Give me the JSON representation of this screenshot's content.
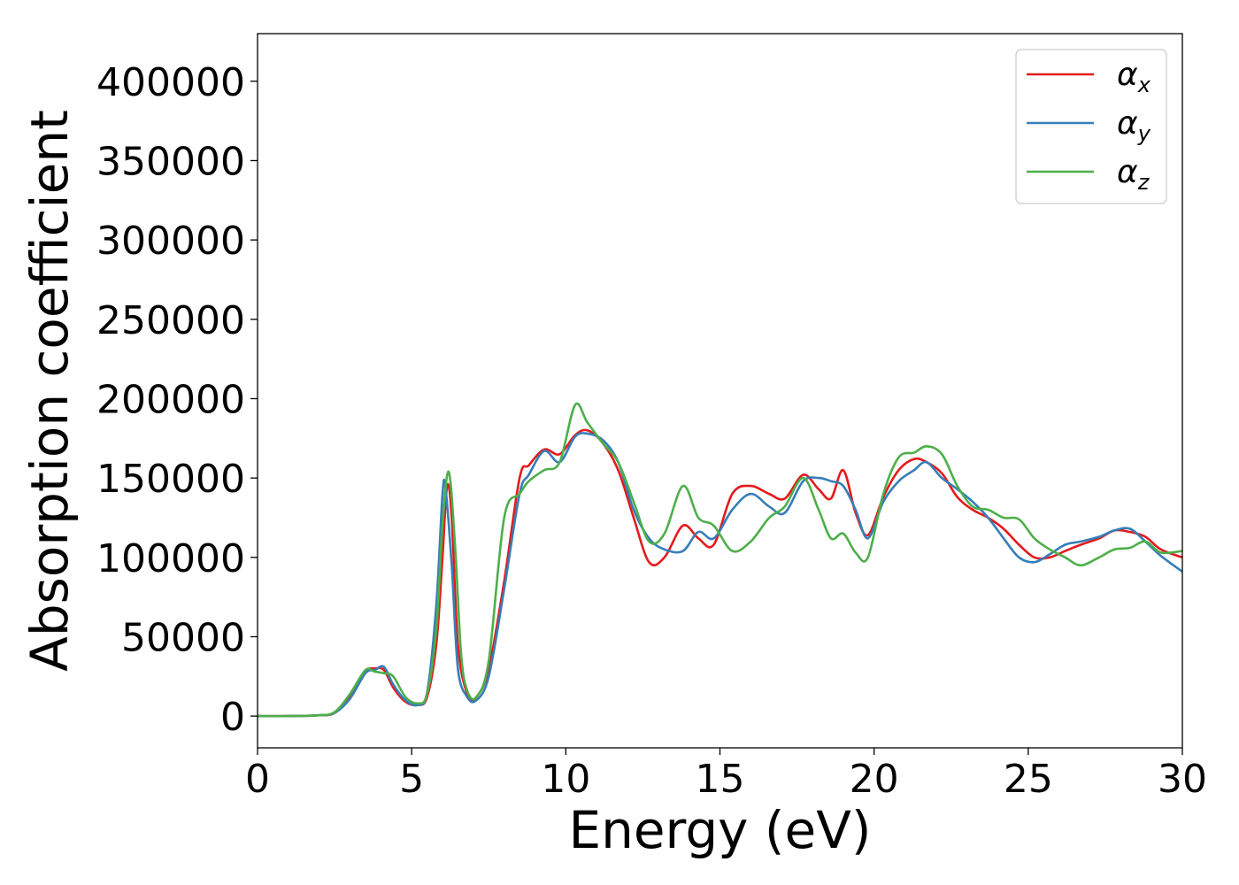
{
  "chart_data": {
    "type": "line",
    "title": "",
    "xlabel": "Energy (eV)",
    "ylabel": "Absorption coefficient",
    "xlim": [
      0,
      30
    ],
    "ylim": [
      -20000,
      430000
    ],
    "xticks": [
      0,
      5,
      10,
      15,
      20,
      25,
      30
    ],
    "yticks": [
      0,
      50000,
      100000,
      150000,
      200000,
      250000,
      300000,
      350000,
      400000
    ],
    "grid": false,
    "legend_position": "top-right",
    "series": [
      {
        "name": "αx",
        "label_main": "α",
        "label_sub": "x",
        "color": "#e41a1c",
        "x": [
          0,
          1,
          2,
          2.5,
          3,
          3.5,
          3.8,
          4.1,
          4.4,
          4.8,
          5.2,
          5.5,
          5.8,
          6.0,
          6.15,
          6.3,
          6.5,
          6.8,
          7.1,
          7.5,
          8.0,
          8.5,
          8.8,
          9.3,
          9.8,
          10.3,
          10.7,
          11.2,
          11.7,
          12.2,
          12.7,
          13.2,
          13.8,
          14.3,
          14.8,
          15.4,
          16.0,
          16.6,
          17.1,
          17.7,
          18.2,
          18.6,
          19.0,
          19.4,
          19.8,
          20.3,
          20.8,
          21.3,
          21.7,
          22.2,
          22.7,
          23.2,
          23.7,
          24.2,
          24.7,
          25.2,
          25.7,
          26.2,
          26.7,
          27.3,
          27.8,
          28.3,
          28.8,
          29.3,
          30.0
        ],
        "y": [
          0,
          0,
          500,
          2000,
          12000,
          28000,
          30000,
          29000,
          18000,
          9000,
          7000,
          12000,
          45000,
          100000,
          145000,
          125000,
          45000,
          14000,
          12000,
          30000,
          85000,
          150000,
          158000,
          168000,
          165000,
          177000,
          180000,
          172000,
          155000,
          125000,
          97000,
          100000,
          120000,
          112000,
          108000,
          140000,
          145000,
          140000,
          137000,
          152000,
          143000,
          137000,
          155000,
          128000,
          114000,
          138000,
          155000,
          162000,
          160000,
          153000,
          138000,
          130000,
          125000,
          118000,
          108000,
          100000,
          100000,
          104000,
          108000,
          112000,
          117000,
          116000,
          113000,
          105000,
          100000
        ]
      },
      {
        "name": "αy",
        "label_main": "α",
        "label_sub": "y",
        "color": "#377eb8",
        "x": [
          0,
          1,
          2,
          2.5,
          3,
          3.5,
          3.8,
          4.1,
          4.4,
          4.8,
          5.2,
          5.5,
          5.8,
          6.0,
          6.1,
          6.3,
          6.5,
          6.8,
          7.1,
          7.5,
          8.0,
          8.5,
          8.8,
          9.3,
          9.8,
          10.3,
          10.7,
          11.2,
          11.7,
          12.2,
          12.7,
          13.2,
          13.8,
          14.3,
          14.8,
          15.4,
          16.0,
          16.6,
          17.1,
          17.7,
          18.2,
          18.6,
          19.0,
          19.4,
          19.8,
          20.3,
          20.8,
          21.3,
          21.7,
          22.2,
          22.7,
          23.2,
          23.7,
          24.2,
          24.7,
          25.2,
          25.7,
          26.2,
          26.7,
          27.3,
          27.8,
          28.3,
          28.8,
          29.3,
          30.0
        ],
        "y": [
          0,
          0,
          500,
          2000,
          11000,
          27000,
          29000,
          31000,
          20000,
          10000,
          7000,
          15000,
          70000,
          140000,
          143000,
          95000,
          30000,
          12000,
          10000,
          25000,
          80000,
          140000,
          152000,
          167000,
          160000,
          176000,
          178000,
          174000,
          160000,
          130000,
          112000,
          105000,
          104000,
          116000,
          112000,
          130000,
          140000,
          132000,
          128000,
          148000,
          150000,
          148000,
          145000,
          130000,
          112000,
          135000,
          148000,
          155000,
          160000,
          150000,
          143000,
          135000,
          125000,
          112000,
          100000,
          97000,
          102000,
          108000,
          110000,
          113000,
          117000,
          118000,
          110000,
          101000,
          91000
        ]
      },
      {
        "name": "αz",
        "label_main": "α",
        "label_sub": "z",
        "color": "#4daf4a",
        "x": [
          0,
          1,
          2,
          2.5,
          3,
          3.5,
          3.8,
          4.1,
          4.4,
          4.8,
          5.2,
          5.5,
          5.8,
          6.0,
          6.2,
          6.4,
          6.6,
          6.8,
          7.1,
          7.5,
          8.0,
          8.5,
          8.8,
          9.3,
          9.8,
          10.3,
          10.7,
          11.2,
          11.7,
          12.2,
          12.7,
          13.2,
          13.8,
          14.3,
          14.8,
          15.4,
          16.0,
          16.6,
          17.1,
          17.7,
          18.2,
          18.6,
          19.0,
          19.4,
          19.8,
          20.3,
          20.8,
          21.3,
          21.7,
          22.2,
          22.7,
          23.2,
          23.7,
          24.2,
          24.7,
          25.2,
          25.7,
          26.2,
          26.7,
          27.3,
          27.8,
          28.3,
          28.8,
          29.3,
          30.0
        ],
        "y": [
          0,
          0,
          500,
          2500,
          14000,
          29000,
          28000,
          27000,
          25000,
          12000,
          8000,
          14000,
          55000,
          120000,
          154000,
          110000,
          40000,
          16000,
          12000,
          35000,
          125000,
          140000,
          148000,
          155000,
          160000,
          196000,
          185000,
          172000,
          160000,
          135000,
          110000,
          115000,
          145000,
          125000,
          120000,
          104000,
          110000,
          125000,
          132000,
          150000,
          130000,
          112000,
          115000,
          103000,
          100000,
          140000,
          163000,
          166000,
          170000,
          165000,
          145000,
          132000,
          130000,
          125000,
          124000,
          112000,
          105000,
          100000,
          95000,
          100000,
          105000,
          106000,
          110000,
          103000,
          104000
        ]
      }
    ]
  }
}
